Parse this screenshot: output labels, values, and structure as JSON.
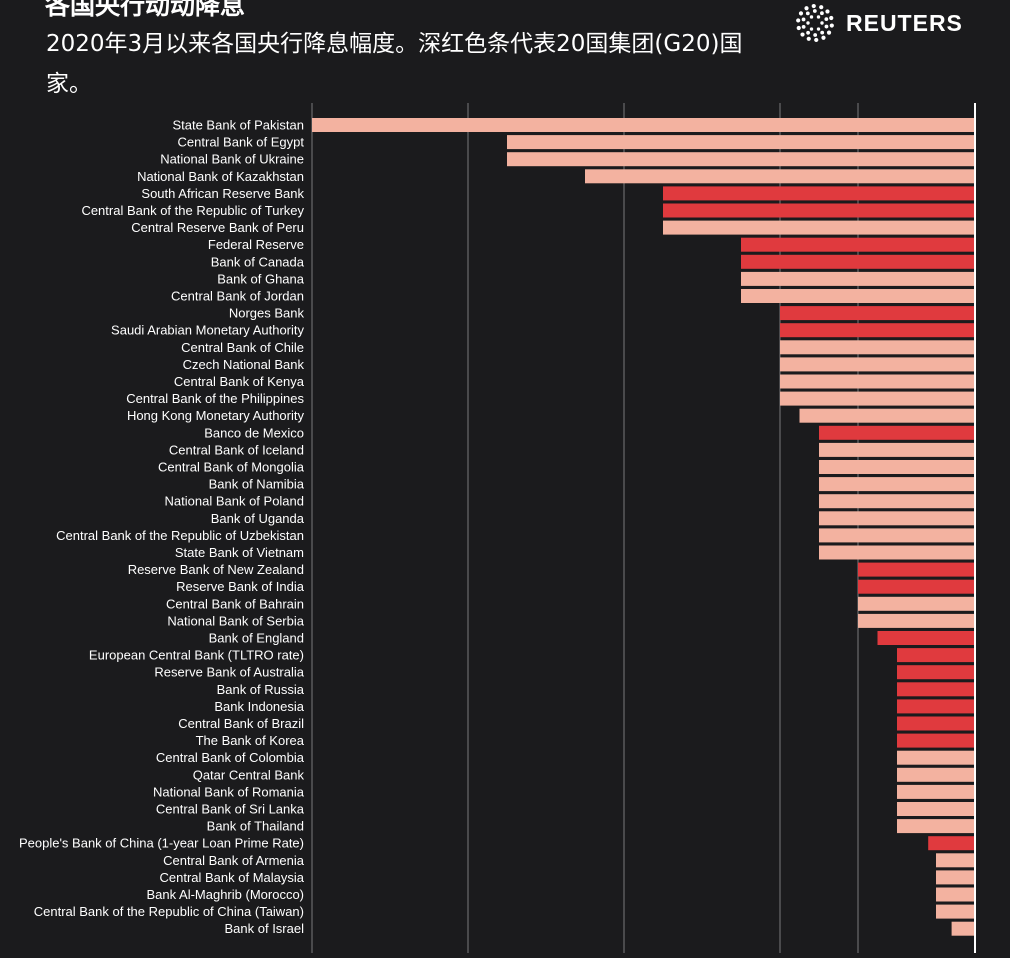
{
  "header": {
    "title": "各国央行动动降息",
    "subtitle": "2020年3月以来各国央行降息幅度。深红色条代表20国集团(G20)国家。"
  },
  "logo": {
    "text": "REUTERS",
    "icon": "reuters-dot-logo-icon"
  },
  "colors": {
    "background": "#1b1b1d",
    "g20": "#e03a3e",
    "non_g20": "#f3b2a0",
    "gridline": "#7a7a7a",
    "baseline": "#ffffff"
  },
  "chart_data": {
    "type": "bar",
    "orientation": "horizontal",
    "xlim": [
      -8.5,
      0
    ],
    "grid": true,
    "categories": [
      "State Bank of Pakistan",
      "Central Bank of Egypt",
      "National Bank of Ukraine",
      "National Bank of Kazakhstan",
      "South African Reserve Bank",
      "Central Bank of the Republic of Turkey",
      "Central Reserve Bank of Peru",
      "Federal Reserve",
      "Bank of Canada",
      "Bank of Ghana",
      "Central Bank of Jordan",
      "Norges Bank",
      "Saudi Arabian Monetary Authority",
      "Central Bank of Chile",
      "Czech National Bank",
      "Central Bank of Kenya",
      "Central Bank of the Philippines",
      "Hong Kong Monetary Authority",
      "Banco de Mexico",
      "Central Bank of Iceland",
      "Central Bank of Mongolia",
      "Bank of Namibia",
      "National Bank of Poland",
      "Bank of Uganda",
      "Central Bank of the Republic of Uzbekistan",
      "State Bank of Vietnam",
      "Reserve Bank of New Zealand",
      "Reserve Bank of India",
      "Central Bank of Bahrain",
      "National Bank of Serbia",
      "Bank of England",
      "European Central Bank (TLTRO rate)",
      "Reserve Bank of Australia",
      "Bank of Russia",
      "Bank Indonesia",
      "Central Bank of Brazil",
      "The Bank of Korea",
      "Central Bank of Colombia",
      "Qatar Central Bank",
      "National Bank of Romania",
      "Central Bank of Sri Lanka",
      "Bank of Thailand",
      "People's Bank of China (1-year Loan Prime Rate)",
      "Central Bank of Armenia",
      "Central Bank of Malaysia",
      "Bank Al-Maghrib (Morocco)",
      "Central Bank of the Republic of China (Taiwan)",
      "Bank of Israel"
    ],
    "values": [
      -8.5,
      -6.0,
      -6.0,
      -5.0,
      -4.0,
      -4.0,
      -4.0,
      -3.0,
      -3.0,
      -3.0,
      -3.0,
      -2.5,
      -2.5,
      -2.5,
      -2.5,
      -2.5,
      -2.5,
      -2.25,
      -2.0,
      -2.0,
      -2.0,
      -2.0,
      -2.0,
      -2.0,
      -2.0,
      -2.0,
      -1.5,
      -1.5,
      -1.5,
      -1.5,
      -1.25,
      -1.0,
      -1.0,
      -1.0,
      -1.0,
      -1.0,
      -1.0,
      -1.0,
      -1.0,
      -1.0,
      -1.0,
      -1.0,
      -0.6,
      -0.5,
      -0.5,
      -0.5,
      -0.5,
      -0.3
    ],
    "g20": [
      false,
      false,
      false,
      false,
      true,
      true,
      false,
      true,
      true,
      false,
      false,
      true,
      true,
      false,
      false,
      false,
      false,
      false,
      true,
      false,
      false,
      false,
      false,
      false,
      false,
      false,
      true,
      true,
      false,
      false,
      true,
      true,
      true,
      true,
      true,
      true,
      true,
      false,
      false,
      false,
      false,
      false,
      true,
      false,
      false,
      false,
      false,
      false
    ]
  }
}
